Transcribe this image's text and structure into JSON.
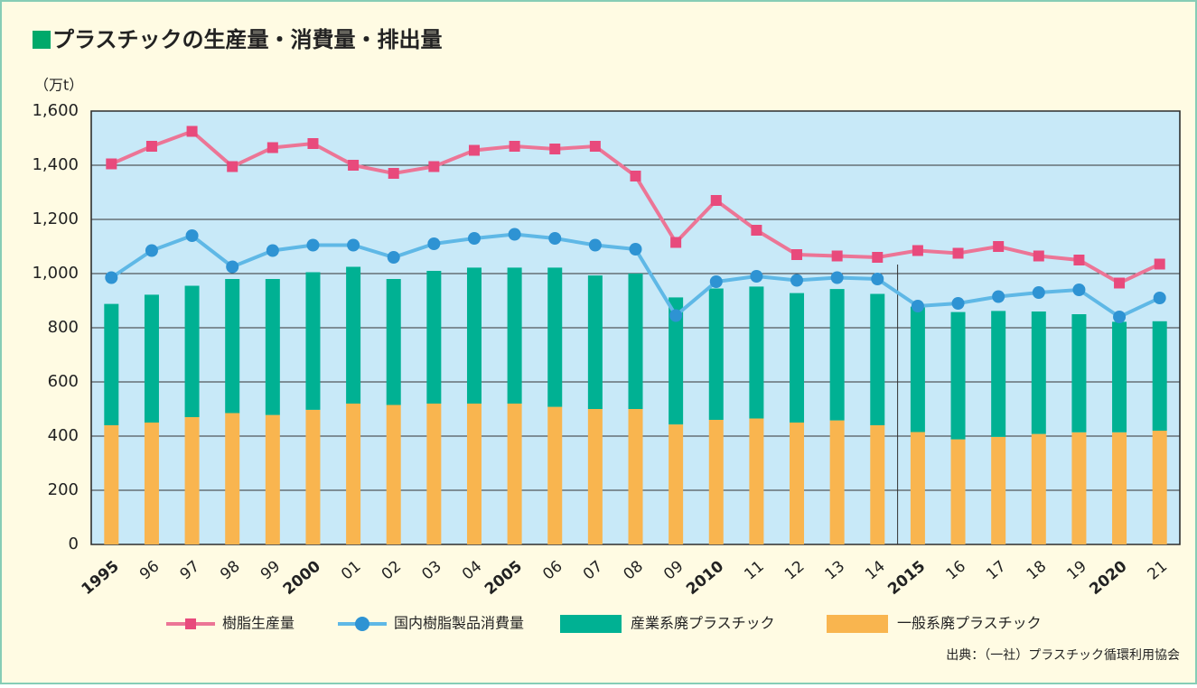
{
  "chart_data": {
    "type": "bar-line",
    "title": "プラスチックの生産量・消費量・排出量",
    "y_axis_label": "（万t）",
    "source": "出典：（一社）プラスチック循環利用協会",
    "categories": [
      "1995",
      "96",
      "97",
      "98",
      "99",
      "2000",
      "01",
      "02",
      "03",
      "04",
      "2005",
      "06",
      "07",
      "08",
      "09",
      "2010",
      "11",
      "12",
      "13",
      "14",
      "2015",
      "16",
      "17",
      "18",
      "19",
      "2020",
      "21"
    ],
    "ylim": [
      0,
      1600
    ],
    "yticks": [
      0,
      200,
      400,
      600,
      800,
      {
        "value": 1000,
        "label": "1,000"
      },
      {
        "value": 1200,
        "label": "1,200"
      },
      {
        "value": 1400,
        "label": "1,400"
      },
      {
        "value": 1600,
        "label": "1,600"
      }
    ],
    "grid": true,
    "series": [
      {
        "name": "樹脂生産量",
        "kind": "line",
        "marker": "square",
        "color": "#ec7596",
        "marker_color": "#e84a7c",
        "values": [
          1405,
          1470,
          1525,
          1395,
          1465,
          1480,
          1400,
          1370,
          1395,
          1455,
          1470,
          1460,
          1470,
          1360,
          1115,
          1270,
          1160,
          1070,
          1065,
          1060,
          1085,
          1075,
          1100,
          1065,
          1050,
          965,
          1035
        ]
      },
      {
        "name": "国内樹脂製品消費量",
        "kind": "line",
        "marker": "circle",
        "color": "#5fb8e6",
        "marker_color": "#2e93d3",
        "values": [
          985,
          1085,
          1140,
          1025,
          1085,
          1105,
          1105,
          1060,
          1110,
          1130,
          1145,
          1130,
          1105,
          1090,
          845,
          970,
          990,
          975,
          985,
          980,
          880,
          890,
          915,
          930,
          940,
          840,
          910
        ]
      },
      {
        "name": "産業系廃プラスチック",
        "kind": "stack",
        "color": "#00b193",
        "values": [
          448,
          472,
          485,
          495,
          502,
          508,
          505,
          465,
          490,
          502,
          502,
          514,
          493,
          500,
          469,
          485,
          487,
          478,
          485,
          485,
          463,
          470,
          465,
          452,
          436,
          408,
          404
        ]
      },
      {
        "name": "一般系廃プラスチック",
        "kind": "stack",
        "color": "#f9b54f",
        "values": [
          440,
          450,
          470,
          485,
          478,
          497,
          520,
          515,
          520,
          520,
          520,
          508,
          500,
          500,
          443,
          460,
          465,
          450,
          458,
          440,
          415,
          388,
          397,
          408,
          414,
          414,
          420
        ]
      }
    ]
  }
}
